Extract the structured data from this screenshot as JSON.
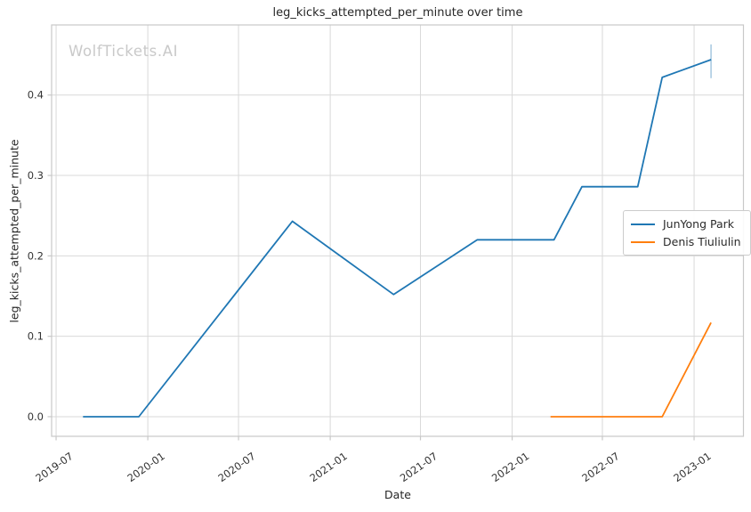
{
  "figure": {
    "title": "leg_kicks_attempted_per_minute over time",
    "watermark": "WolfTickets.AI",
    "xlabel": "Date",
    "ylabel": "leg_kicks_attempted_per_minute"
  },
  "colors": {
    "background": "#ffffff",
    "grid": "#d9d9d9",
    "spine": "#c8c8c8",
    "tick_label": "#333333",
    "text": "#262626",
    "watermark": "#c9c9c9",
    "legend_border": "#cccccc",
    "series_blue": "#1f77b4",
    "series_orange": "#ff7f0e",
    "error_bar": "rgba(31,119,180,0.38)"
  },
  "chart_data": {
    "type": "line",
    "title": "leg_kicks_attempted_per_minute over time",
    "xlabel": "Date",
    "ylabel": "leg_kicks_attempted_per_minute",
    "watermark": "WolfTickets.AI",
    "grid": true,
    "legend_position": "center right",
    "xlim": [
      "2019-06-22",
      "2023-04-10"
    ],
    "ylim": [
      -0.0244,
      0.4872
    ],
    "x_ticks": [
      {
        "date": "2019-07-01",
        "label": "2019-07"
      },
      {
        "date": "2020-01-01",
        "label": "2020-01"
      },
      {
        "date": "2020-07-01",
        "label": "2020-07"
      },
      {
        "date": "2021-01-01",
        "label": "2021-01"
      },
      {
        "date": "2021-07-01",
        "label": "2021-07"
      },
      {
        "date": "2022-01-01",
        "label": "2022-01"
      },
      {
        "date": "2022-07-01",
        "label": "2022-07"
      },
      {
        "date": "2023-01-01",
        "label": "2023-01"
      }
    ],
    "y_ticks": [
      {
        "value": 0.0,
        "label": "0.0"
      },
      {
        "value": 0.1,
        "label": "0.1"
      },
      {
        "value": 0.2,
        "label": "0.2"
      },
      {
        "value": 0.3,
        "label": "0.3"
      },
      {
        "value": 0.4,
        "label": "0.4"
      }
    ],
    "series": [
      {
        "name": "JunYong Park",
        "color": "#1f77b4",
        "points": [
          {
            "date": "2019-08-24",
            "value": 0.0
          },
          {
            "date": "2019-12-14",
            "value": 0.0
          },
          {
            "date": "2020-10-17",
            "value": 0.243
          },
          {
            "date": "2021-05-08",
            "value": 0.152
          },
          {
            "date": "2021-10-23",
            "value": 0.22
          },
          {
            "date": "2022-03-26",
            "value": 0.22
          },
          {
            "date": "2022-05-21",
            "value": 0.286
          },
          {
            "date": "2022-09-10",
            "value": 0.286
          },
          {
            "date": "2022-10-29",
            "value": 0.422
          },
          {
            "date": "2023-02-04",
            "value": 0.444
          }
        ],
        "error_bar": {
          "date": "2023-02-04",
          "low": 0.421,
          "high": 0.463
        }
      },
      {
        "name": "Denis Tiuliulin",
        "color": "#ff7f0e",
        "points": [
          {
            "date": "2022-03-19",
            "value": 0.0
          },
          {
            "date": "2022-10-29",
            "value": 0.0
          },
          {
            "date": "2023-02-04",
            "value": 0.117
          }
        ]
      }
    ]
  }
}
